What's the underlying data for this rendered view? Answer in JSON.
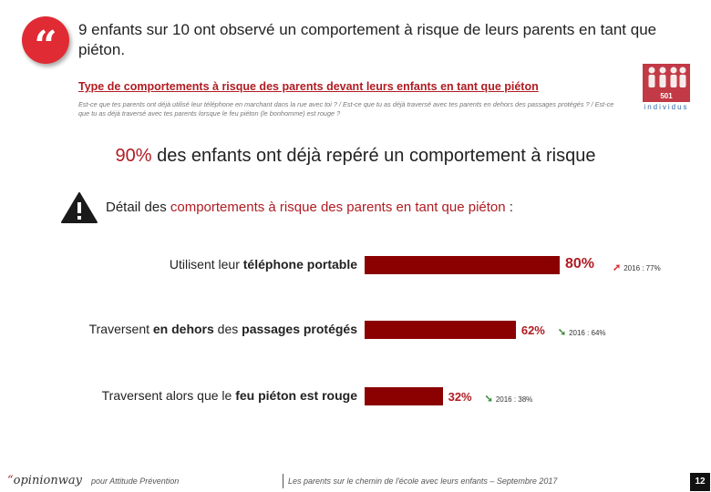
{
  "quote_glyph": "“",
  "headline": "9 enfants sur 10 ont observé un comportement à risque de leurs parents en tant que piéton.",
  "subtitle": "Type de comportements à risque des parents devant leurs enfants en tant que piéton",
  "question": "Est-ce que tes parents ont déjà utilisé leur téléphone en marchant dans la rue avec toi ? / Est-ce que tu as déjà traversé avec tes parents en dehors des passages protégés ? / Est-ce que tu as déjà traversé avec tes parents lorsque le feu piéton (le bonhomme) est rouge ?",
  "sample": {
    "count": "501",
    "label": "individus"
  },
  "key_stat": {
    "pct": "90%",
    "text": " des enfants ont déjà repéré un comportement à risque"
  },
  "detail": {
    "prefix": "Détail des ",
    "highlight": "comportements à risque des parents en tant que piéton",
    "suffix": " :"
  },
  "colors": {
    "accent": "#b01c22",
    "bar": "#8b0000",
    "badge": "#e02b34",
    "trend_up": "#e02b34",
    "trend_down": "#3d8a3a"
  },
  "chart_data": {
    "type": "bar",
    "orientation": "horizontal",
    "categories": [
      {
        "parts": [
          {
            "t": "Utilisent leur ",
            "bold": false
          },
          {
            "t": "téléphone portable",
            "bold": true
          }
        ]
      },
      {
        "parts": [
          {
            "t": "Traversent ",
            "bold": false
          },
          {
            "t": "en dehors",
            "bold": true
          },
          {
            "t": " des ",
            "bold": false
          },
          {
            "t": "passages protégés",
            "bold": true
          }
        ]
      },
      {
        "parts": [
          {
            "t": "Traversent alors que le ",
            "bold": false
          },
          {
            "t": "feu piéton est rouge",
            "bold": true
          }
        ]
      }
    ],
    "values": [
      80,
      62,
      32
    ],
    "value_labels": [
      "80%",
      "62%",
      "32%"
    ],
    "previous": [
      {
        "year_label": "2016 : 77%",
        "value": 77,
        "trend": "up",
        "arrow": "➚"
      },
      {
        "year_label": "2016 : 64%",
        "value": 64,
        "trend": "down",
        "arrow": "➘"
      },
      {
        "year_label": "2016 : 38%",
        "value": 38,
        "trend": "down",
        "arrow": "➘"
      }
    ],
    "xlim": [
      0,
      100
    ]
  },
  "footer": {
    "logo_quote": "“",
    "logo": "opinionway",
    "client": "pour Attitude Prévention",
    "caption": "Les parents sur le chemin de l'école avec leurs enfants – Septembre 2017",
    "page": "12"
  }
}
